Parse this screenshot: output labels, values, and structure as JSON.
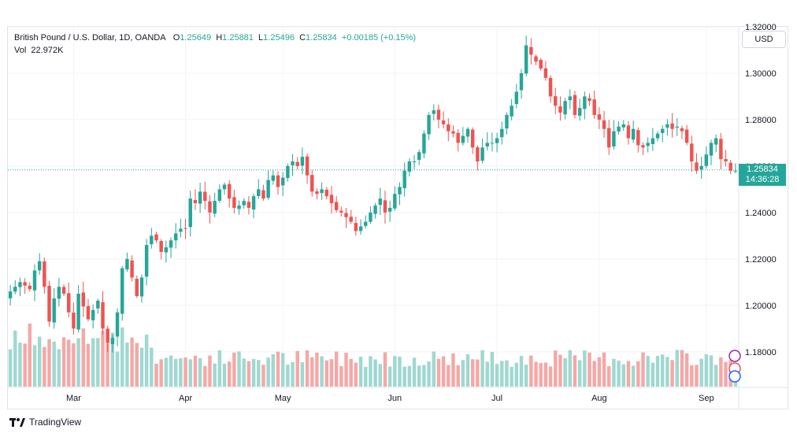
{
  "legend": {
    "symbol": "British Pound / U.S. Dollar, 1D, OANDA",
    "o_label": "O",
    "o_value": "1.25649",
    "h_label": "H",
    "h_value": "1.25881",
    "l_label": "L",
    "l_value": "1.25496",
    "c_label": "C",
    "c_value": "1.25834",
    "change": "+0.00185 (+0.15%)",
    "vol_label": "Vol",
    "vol_value": "22.972K"
  },
  "currency_button": "USD",
  "last_price": {
    "price": "1.25834",
    "countdown": "14:36:28"
  },
  "brand": "TradingView",
  "colors": {
    "up": "#26a69a",
    "down": "#ef5350",
    "vol_up": "#9fd8d1",
    "vol_down": "#f5a8a6",
    "grid": "#f0f3fa"
  },
  "chart_data": {
    "type": "candlestick",
    "title": "British Pound / U.S. Dollar, 1D, OANDA",
    "y_ticks": [
      "1.18000",
      "1.20000",
      "1.22000",
      "1.24000",
      "1.26000",
      "1.28000",
      "1.30000",
      "1.32000"
    ],
    "ylim": [
      1.165,
      1.32
    ],
    "x_ticks": [
      {
        "label": "Mar",
        "index": 13
      },
      {
        "label": "Apr",
        "index": 36
      },
      {
        "label": "May",
        "index": 56
      },
      {
        "label": "Jun",
        "index": 79
      },
      {
        "label": "Jul",
        "index": 100
      },
      {
        "label": "Aug",
        "index": 121
      },
      {
        "label": "Sep",
        "index": 143
      }
    ],
    "close_path": [
      [
        0,
        1.206
      ],
      [
        2,
        1.21
      ],
      [
        4,
        1.207
      ],
      [
        5,
        1.215
      ],
      [
        6,
        1.219
      ],
      [
        7,
        1.208
      ],
      [
        8,
        1.193
      ],
      [
        9,
        1.203
      ],
      [
        10,
        1.208
      ],
      [
        11,
        1.205
      ],
      [
        12,
        1.197
      ],
      [
        13,
        1.19
      ],
      [
        14,
        1.205
      ],
      [
        16,
        1.194
      ],
      [
        18,
        1.202
      ],
      [
        19,
        1.19
      ],
      [
        20,
        1.184
      ],
      [
        21,
        1.186
      ],
      [
        22,
        1.197
      ],
      [
        23,
        1.216
      ],
      [
        24,
        1.22
      ],
      [
        25,
        1.212
      ],
      [
        26,
        1.204
      ],
      [
        27,
        1.212
      ],
      [
        28,
        1.226
      ],
      [
        29,
        1.23
      ],
      [
        30,
        1.228
      ],
      [
        31,
        1.223
      ],
      [
        32,
        1.225
      ],
      [
        33,
        1.228
      ],
      [
        34,
        1.231
      ],
      [
        35,
        1.233
      ],
      [
        36,
        1.233
      ],
      [
        37,
        1.246
      ],
      [
        38,
        1.244
      ],
      [
        39,
        1.249
      ],
      [
        40,
        1.245
      ],
      [
        41,
        1.24
      ],
      [
        42,
        1.245
      ],
      [
        43,
        1.25
      ],
      [
        44,
        1.252
      ],
      [
        45,
        1.246
      ],
      [
        46,
        1.242
      ],
      [
        47,
        1.243
      ],
      [
        48,
        1.245
      ],
      [
        49,
        1.242
      ],
      [
        50,
        1.247
      ],
      [
        51,
        1.25
      ],
      [
        52,
        1.246
      ],
      [
        53,
        1.254
      ],
      [
        54,
        1.256
      ],
      [
        55,
        1.251
      ],
      [
        56,
        1.255
      ],
      [
        57,
        1.26
      ],
      [
        58,
        1.262
      ],
      [
        59,
        1.26
      ],
      [
        60,
        1.264
      ],
      [
        61,
        1.256
      ],
      [
        62,
        1.249
      ],
      [
        63,
        1.248
      ],
      [
        64,
        1.25
      ],
      [
        65,
        1.247
      ],
      [
        66,
        1.244
      ],
      [
        67,
        1.241
      ],
      [
        68,
        1.24
      ],
      [
        69,
        1.238
      ],
      [
        70,
        1.236
      ],
      [
        71,
        1.232
      ],
      [
        72,
        1.234
      ],
      [
        73,
        1.236
      ],
      [
        74,
        1.24
      ],
      [
        75,
        1.243
      ],
      [
        76,
        1.246
      ],
      [
        77,
        1.24
      ],
      [
        78,
        1.242
      ],
      [
        79,
        1.248
      ],
      [
        80,
        1.251
      ],
      [
        81,
        1.258
      ],
      [
        82,
        1.262
      ],
      [
        83,
        1.262
      ],
      [
        84,
        1.266
      ],
      [
        85,
        1.274
      ],
      [
        86,
        1.282
      ],
      [
        87,
        1.284
      ],
      [
        88,
        1.28
      ],
      [
        89,
        1.278
      ],
      [
        90,
        1.275
      ],
      [
        91,
        1.274
      ],
      [
        92,
        1.27
      ],
      [
        93,
        1.273
      ],
      [
        94,
        1.276
      ],
      [
        95,
        1.268
      ],
      [
        96,
        1.262
      ],
      [
        97,
        1.268
      ],
      [
        98,
        1.27
      ],
      [
        99,
        1.27
      ],
      [
        100,
        1.272
      ],
      [
        101,
        1.276
      ],
      [
        102,
        1.282
      ],
      [
        103,
        1.286
      ],
      [
        104,
        1.292
      ],
      [
        105,
        1.3
      ],
      [
        106,
        1.312
      ],
      [
        107,
        1.308
      ],
      [
        108,
        1.305
      ],
      [
        109,
        1.302
      ],
      [
        110,
        1.298
      ],
      [
        111,
        1.29
      ],
      [
        112,
        1.286
      ],
      [
        113,
        1.283
      ],
      [
        114,
        1.288
      ],
      [
        115,
        1.29
      ],
      [
        116,
        1.282
      ],
      [
        117,
        1.285
      ],
      [
        118,
        1.29
      ],
      [
        119,
        1.288
      ],
      [
        120,
        1.282
      ],
      [
        121,
        1.28
      ],
      [
        122,
        1.276
      ],
      [
        123,
        1.268
      ],
      [
        124,
        1.275
      ],
      [
        125,
        1.277
      ],
      [
        126,
        1.278
      ],
      [
        127,
        1.272
      ],
      [
        128,
        1.276
      ],
      [
        129,
        1.269
      ],
      [
        130,
        1.268
      ],
      [
        131,
        1.27
      ],
      [
        132,
        1.272
      ],
      [
        133,
        1.274
      ],
      [
        134,
        1.276
      ],
      [
        135,
        1.278
      ],
      [
        136,
        1.276
      ],
      [
        137,
        1.277
      ],
      [
        138,
        1.275
      ],
      [
        139,
        1.27
      ],
      [
        140,
        1.262
      ],
      [
        141,
        1.258
      ],
      [
        142,
        1.26
      ],
      [
        143,
        1.265
      ],
      [
        144,
        1.27
      ],
      [
        145,
        1.272
      ],
      [
        146,
        1.263
      ],
      [
        147,
        1.262
      ],
      [
        148,
        1.258
      ],
      [
        149,
        1.258
      ]
    ]
  }
}
